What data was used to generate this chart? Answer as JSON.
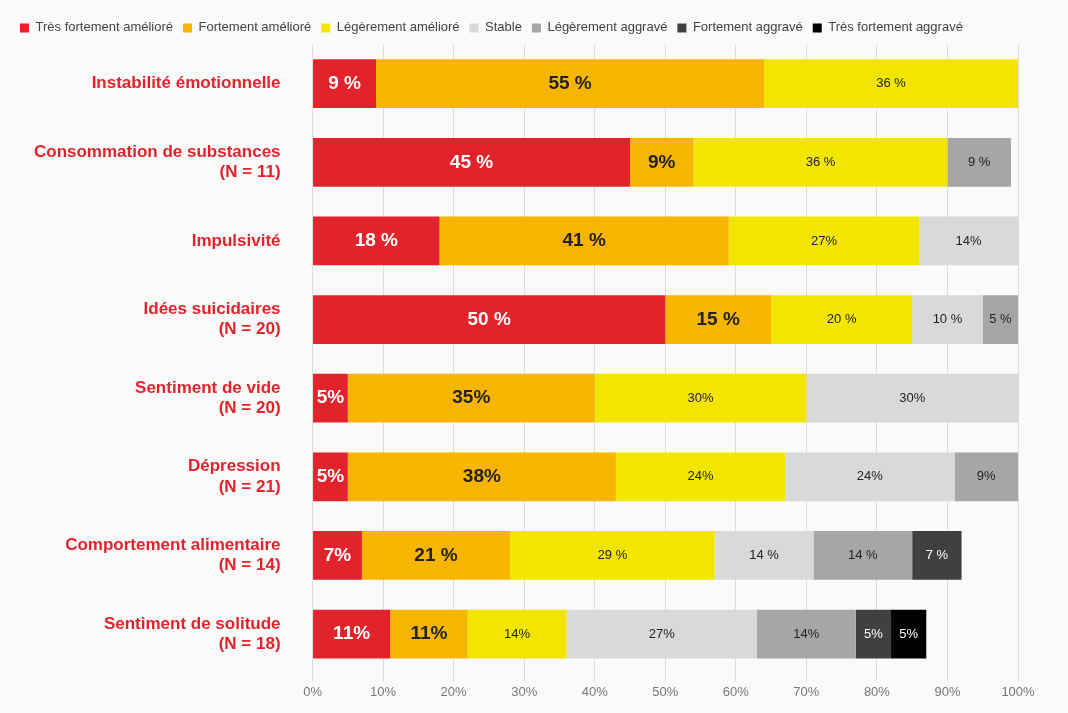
{
  "chart_data": {
    "type": "bar",
    "orientation": "horizontal",
    "stacked": true,
    "legend": "top",
    "grid": "x",
    "categories": [
      "Instabilité émotionnelle",
      "Consommation de substances\n(N = 11)",
      "Impulsivité",
      "Idées suicidaires\n(N = 20)",
      "Sentiment de vide\n(N = 20)",
      "Dépression\n(N = 21)",
      "Comportement alimentaire\n(N = 14)",
      "Sentiment de solitude\n(N = 18)"
    ],
    "xlim": [
      0,
      100
    ],
    "xticks": [
      {
        "value": 0,
        "label": "0%"
      },
      {
        "value": 10,
        "label": "10%"
      },
      {
        "value": 20,
        "label": "20%"
      },
      {
        "value": 30,
        "label": "30%"
      },
      {
        "value": 40,
        "label": "40%"
      },
      {
        "value": 50,
        "label": "50%"
      },
      {
        "value": 60,
        "label": "60%"
      },
      {
        "value": 70,
        "label": "70%"
      },
      {
        "value": 80,
        "label": "80%"
      },
      {
        "value": 90,
        "label": "90%"
      },
      {
        "value": 100,
        "label": "100%"
      }
    ],
    "series": [
      {
        "name": "Très fortement amélioré",
        "color": "#e3232b",
        "values": [
          9,
          45,
          18,
          50,
          5,
          5,
          7,
          11
        ],
        "value_labels": [
          "9 %",
          "45 %",
          "18 %",
          "50 %",
          "5%",
          "5%",
          "7%",
          "11%"
        ]
      },
      {
        "name": "Fortement amélioré",
        "color": "#f7b500",
        "values": [
          55,
          9,
          41,
          15,
          35,
          38,
          21,
          11
        ],
        "value_labels": [
          "55 %",
          "9%",
          "41 %",
          "15 %",
          "35%",
          "38%",
          "21 %",
          "11%"
        ]
      },
      {
        "name": "Légèrement amélioré",
        "color": "#f2e600",
        "values": [
          36,
          36,
          27,
          20,
          30,
          24,
          29,
          14
        ],
        "value_labels": [
          "36 %",
          "36 %",
          "27%",
          "20 %",
          "30%",
          "24%",
          "29 %",
          "14%"
        ]
      },
      {
        "name": "Stable",
        "color": "#d9d9d9",
        "values": [
          null,
          null,
          14,
          10,
          30,
          24,
          14,
          27
        ],
        "value_labels": [
          null,
          null,
          "14%",
          "10 %",
          "30%",
          "24%",
          "14 %",
          "27%"
        ]
      },
      {
        "name": "Légèrement aggravé",
        "color": "#a6a6a6",
        "values": [
          null,
          9,
          null,
          5,
          null,
          9,
          14,
          14
        ],
        "value_labels": [
          null,
          "9 %",
          null,
          "5 %",
          null,
          "9%",
          "14 %",
          "14%"
        ]
      },
      {
        "name": "Fortement aggravé",
        "color": "#404040",
        "values": [
          null,
          null,
          null,
          null,
          null,
          null,
          7,
          5
        ],
        "value_labels": [
          null,
          null,
          null,
          null,
          null,
          null,
          "7 %",
          "5%"
        ]
      },
      {
        "name": "Très fortement aggravé",
        "color": "#000000",
        "values": [
          null,
          null,
          null,
          null,
          null,
          null,
          null,
          5
        ],
        "value_labels": [
          null,
          null,
          null,
          null,
          null,
          null,
          null,
          "5%"
        ]
      }
    ]
  }
}
